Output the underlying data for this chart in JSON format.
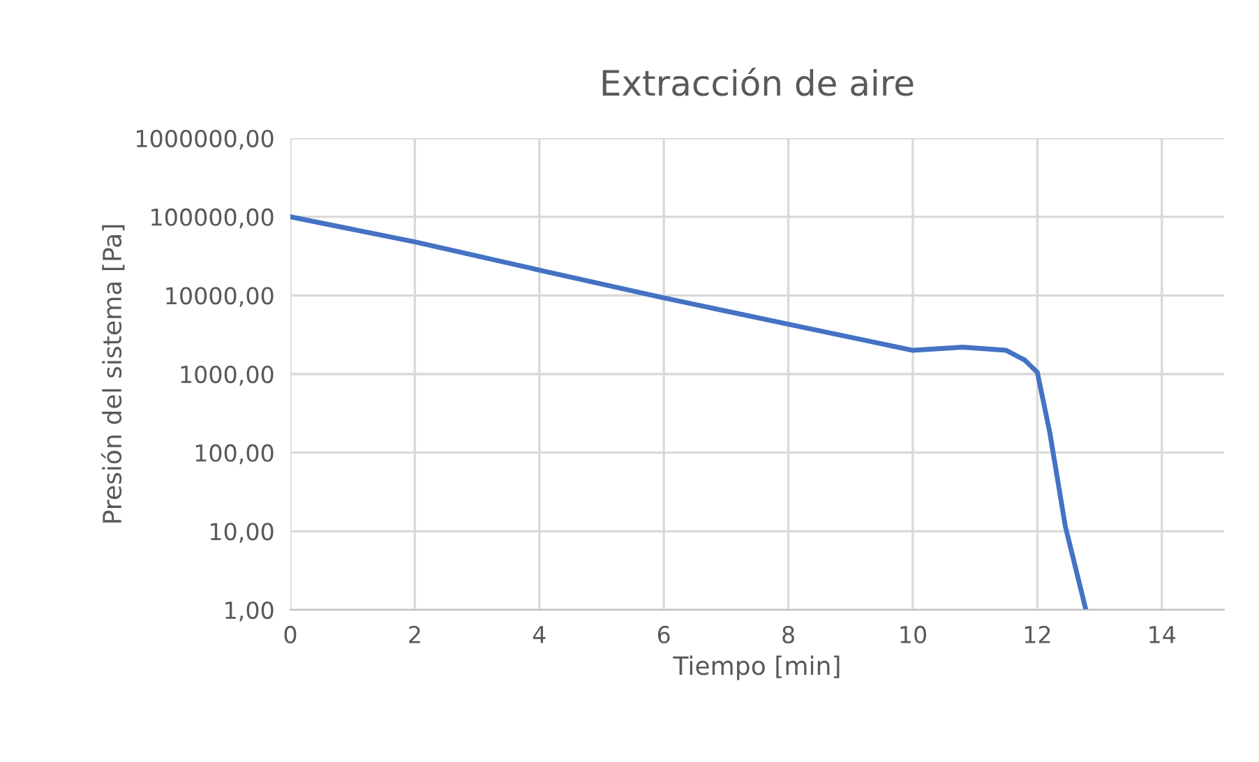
{
  "chart_data": {
    "type": "line",
    "title": "Extracción de aire",
    "xlabel": "Tiempo [min]",
    "ylabel": "Presión del sistema [Pa]",
    "x": [
      0,
      2,
      4,
      6,
      8,
      10,
      10.8,
      11.5,
      11.8,
      12,
      12.2,
      12.45,
      12.78
    ],
    "series": [
      {
        "color": "#4472c4",
        "values": [
          100000,
          48000,
          21000,
          9300,
          4300,
          2000,
          2200,
          2000,
          1500,
          1050,
          180,
          11.5,
          1
        ]
      }
    ],
    "log": "y",
    "xlim": [
      0,
      15
    ],
    "xticks": [
      0,
      2,
      4,
      6,
      8,
      10,
      12,
      14
    ],
    "ylim": [
      1,
      1000000
    ],
    "yticks": [
      {
        "value": 1,
        "label": "1,00"
      },
      {
        "value": 10,
        "label": "10,00"
      },
      {
        "value": 100,
        "label": "100,00"
      },
      {
        "value": 1000,
        "label": "1000,00"
      },
      {
        "value": 10000,
        "label": "10000,00"
      },
      {
        "value": 100000,
        "label": "100000,00"
      },
      {
        "value": 1000000,
        "label": "1000000,00"
      }
    ],
    "grid": true,
    "marker": "none",
    "line_style": "solid"
  }
}
